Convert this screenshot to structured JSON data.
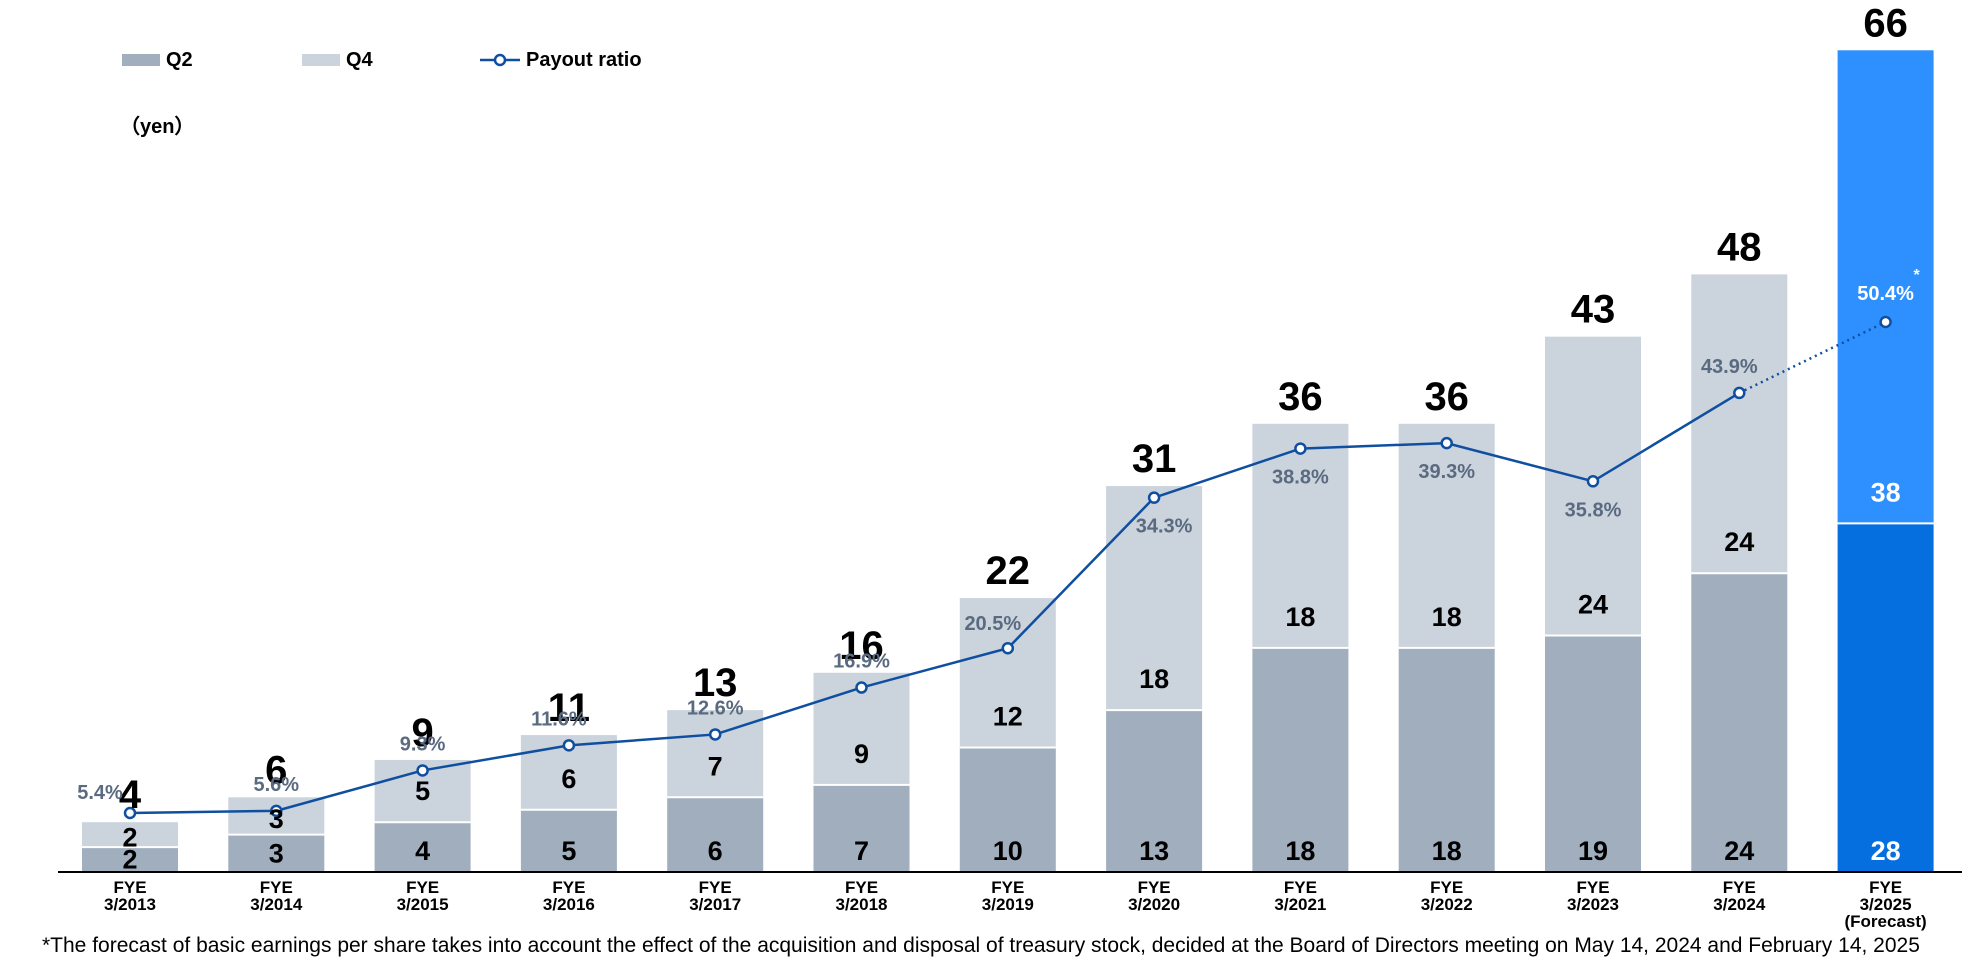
{
  "chart_data": {
    "type": "bar",
    "stacked": true,
    "unit_label": "（yen）",
    "categories": [
      "FYE\n3/2013",
      "FYE\n3/2014",
      "FYE\n3/2015",
      "FYE\n3/2016",
      "FYE\n3/2017",
      "FYE\n3/2018",
      "FYE\n3/2019",
      "FYE\n3/2020",
      "FYE\n3/2021",
      "FYE\n3/2022",
      "FYE\n3/2023",
      "FYE\n3/2024",
      "FYE\n3/2025\n(Forecast)"
    ],
    "series": [
      {
        "name": "Q2",
        "values": [
          2,
          3,
          4,
          5,
          6,
          7,
          10,
          13,
          18,
          18,
          19,
          24,
          28
        ]
      },
      {
        "name": "Q4",
        "values": [
          2,
          3,
          5,
          6,
          7,
          9,
          12,
          18,
          18,
          18,
          24,
          24,
          38
        ]
      }
    ],
    "totals": [
      4,
      6,
      9,
      11,
      13,
      16,
      22,
      31,
      36,
      36,
      43,
      48,
      66
    ],
    "payout_ratio": {
      "name": "Payout ratio",
      "values": [
        5.4,
        5.6,
        9.3,
        11.6,
        12.6,
        16.9,
        20.5,
        34.3,
        38.8,
        39.3,
        35.8,
        43.9,
        50.4
      ],
      "labels": [
        "5.4%",
        "5.6%",
        "9.3%",
        "11.6%",
        "12.6%",
        "16.9%",
        "20.5%",
        "34.3%",
        "38.8%",
        "39.3%",
        "35.8%",
        "43.9%",
        "50.4%"
      ],
      "forecast_marker": "*"
    },
    "legend": [
      "Q2",
      "Q4",
      "Payout ratio"
    ],
    "legend_position": "top-left",
    "grid": false,
    "colors": {
      "q2": "#a0aebd",
      "q4": "#cbd3dc",
      "q2_forecast": "#066fe0",
      "q4_forecast": "#2e90ff",
      "line": "#0f4fa0",
      "ratio_label": "#5a6a80"
    }
  },
  "footnote": "*The forecast of basic earnings per share takes into account the effect of the acquisition and disposal of treasury stock, decided at the Board of Directors meeting on May 14, 2024 and  February 14, 2025"
}
